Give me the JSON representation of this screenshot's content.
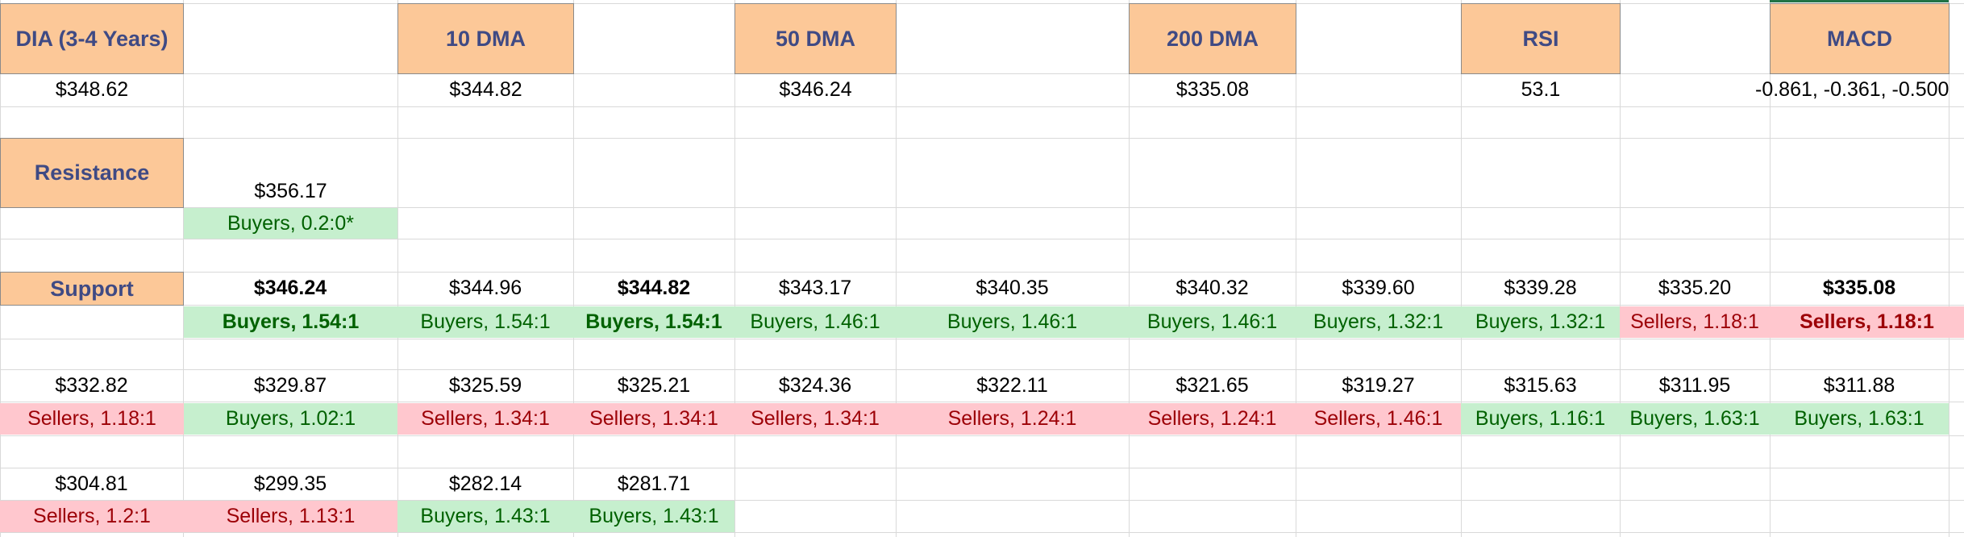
{
  "header_row": {
    "dia_label": "DIA (3-4 Years)",
    "dma10_label": "10 DMA",
    "dma50_label": "50 DMA",
    "dma200_label": "200 DMA",
    "rsi_label": "RSI",
    "macd_label": "MACD"
  },
  "value_row": {
    "dia_price": "$348.62",
    "dma10": "$344.82",
    "dma50": "$346.24",
    "dma200": "$335.08",
    "rsi": "53.1",
    "macd": "-0.861, -0.361, -0.500"
  },
  "resistance": {
    "label": "Resistance",
    "level": "$356.17",
    "ratio": "Buyers, 0.2:0*"
  },
  "support": {
    "label": "Support",
    "row1": [
      {
        "price": "$346.24",
        "ratio": "Buyers, 1.54:1"
      },
      {
        "price": "$344.96",
        "ratio": "Buyers, 1.54:1"
      },
      {
        "price": "$344.82",
        "ratio": "Buyers, 1.54:1"
      },
      {
        "price": "$343.17",
        "ratio": "Buyers, 1.46:1"
      },
      {
        "price": "$340.35",
        "ratio": "Buyers, 1.46:1"
      },
      {
        "price": "$340.32",
        "ratio": "Buyers, 1.46:1"
      },
      {
        "price": "$339.60",
        "ratio": "Buyers, 1.32:1"
      },
      {
        "price": "$339.28",
        "ratio": "Buyers, 1.32:1"
      },
      {
        "price": "$335.20",
        "ratio": "Sellers, 1.18:1"
      },
      {
        "price": "$335.08",
        "ratio": "Sellers, 1.18:1"
      }
    ],
    "row2": [
      {
        "price": "$332.82",
        "ratio": "Sellers, 1.18:1"
      },
      {
        "price": "$329.87",
        "ratio": "Buyers, 1.02:1"
      },
      {
        "price": "$325.59",
        "ratio": "Sellers, 1.34:1"
      },
      {
        "price": "$325.21",
        "ratio": "Sellers, 1.34:1"
      },
      {
        "price": "$324.36",
        "ratio": "Sellers, 1.34:1"
      },
      {
        "price": "$322.11",
        "ratio": "Sellers, 1.24:1"
      },
      {
        "price": "$321.65",
        "ratio": "Sellers, 1.24:1"
      },
      {
        "price": "$319.27",
        "ratio": "Sellers, 1.46:1"
      },
      {
        "price": "$315.63",
        "ratio": "Buyers, 1.16:1"
      },
      {
        "price": "$311.95",
        "ratio": "Buyers, 1.63:1"
      },
      {
        "price": "$311.88",
        "ratio": "Buyers, 1.63:1"
      }
    ],
    "row3": [
      {
        "price": "$304.81",
        "ratio": "Sellers, 1.2:1"
      },
      {
        "price": "$299.35",
        "ratio": "Sellers, 1.13:1"
      },
      {
        "price": "$282.14",
        "ratio": "Buyers, 1.43:1"
      },
      {
        "price": "$281.71",
        "ratio": "Buyers, 1.43:1"
      }
    ]
  },
  "colors": {
    "header_fill": "#fcc898",
    "header_text": "#3f4a84",
    "buyers_fill": "#c6efce",
    "buyers_text": "#006100",
    "sellers_fill": "#ffc7ce",
    "sellers_text": "#9c0006",
    "gridline": "#d9d9d9"
  }
}
